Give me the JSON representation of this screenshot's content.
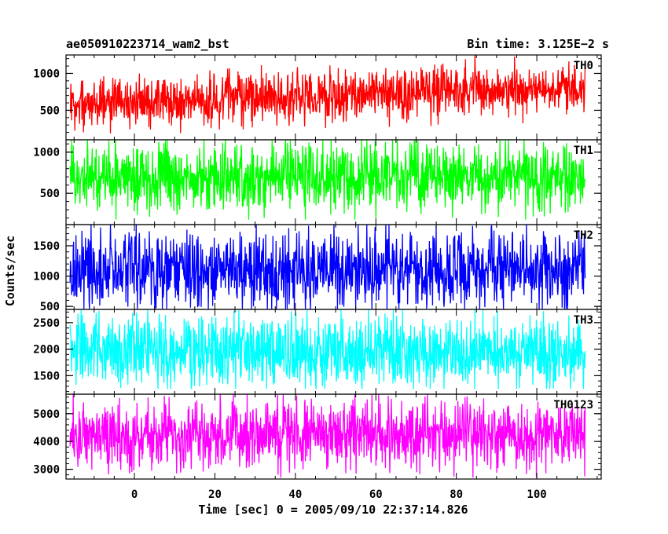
{
  "chart_data": {
    "type": "line",
    "title": "ae050910223714_wam2_bst",
    "subtitle": "Bin time: 3.125E−2 s",
    "xlabel": "Time [sec] 0 = 2005/09/10 22:37:14.826",
    "ylabel": "Counts/sec",
    "xlim": [
      -17,
      116
    ],
    "x_ticks": [
      0,
      20,
      40,
      60,
      80,
      100
    ],
    "x_tick_labels": [
      "0",
      "20",
      "40",
      "60",
      "80",
      "100"
    ],
    "x_data_range": [
      -16,
      112
    ],
    "grid": false,
    "series": [
      {
        "name": "TH0",
        "color": "#ff0000",
        "ylim": [
          100,
          1250
        ],
        "y_ticks": [
          500,
          1000
        ],
        "y_tick_labels": [
          "500",
          "1000"
        ],
        "baseline": 600,
        "baseline_end": 800,
        "noise": 170,
        "peak": 1250,
        "floor": 170
      },
      {
        "name": "TH1",
        "color": "#00ff00",
        "ylim": [
          120,
          1150
        ],
        "y_ticks": [
          500,
          1000
        ],
        "y_tick_labels": [
          "500",
          "1000"
        ],
        "baseline": 700,
        "baseline_end": 700,
        "noise": 210,
        "peak": 1150,
        "floor": 180
      },
      {
        "name": "TH2",
        "color": "#0000ff",
        "ylim": [
          450,
          1850
        ],
        "y_ticks": [
          500,
          1000,
          1500
        ],
        "y_tick_labels": [
          "500",
          "1000",
          "1500"
        ],
        "baseline": 1100,
        "baseline_end": 1100,
        "noise": 330,
        "peak": 1850,
        "floor": 460
      },
      {
        "name": "TH3",
        "color": "#00ffff",
        "ylim": [
          1150,
          2750
        ],
        "y_ticks": [
          1500,
          2000,
          2500
        ],
        "y_tick_labels": [
          "1500",
          "2000",
          "2500"
        ],
        "baseline": 1950,
        "baseline_end": 1950,
        "noise": 340,
        "peak": 2750,
        "floor": 1250
      },
      {
        "name": "TH0123",
        "color": "#ff00ff",
        "ylim": [
          2650,
          5700
        ],
        "y_ticks": [
          3000,
          4000,
          5000
        ],
        "y_tick_labels": [
          "3000",
          "4000",
          "5000"
        ],
        "baseline": 4200,
        "baseline_end": 4300,
        "noise": 620,
        "peak": 5700,
        "floor": 2700
      }
    ]
  }
}
